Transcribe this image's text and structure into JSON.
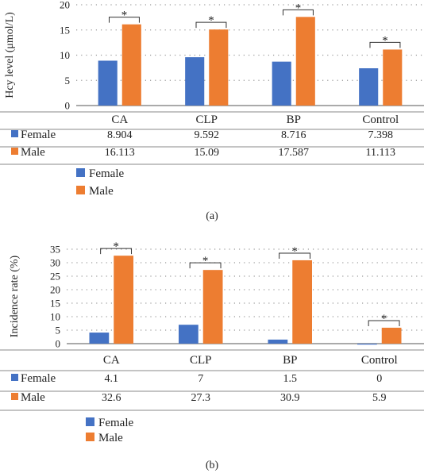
{
  "colors": {
    "female": "#4472c4",
    "male": "#ed7d31"
  },
  "chart_data": [
    {
      "type": "bar",
      "ylabel": "Hcy level (μmol/L)",
      "ylim": [
        0,
        20
      ],
      "yticks": [
        "0",
        "5",
        "10",
        "15",
        "20"
      ],
      "categories": [
        "CA",
        "CLP",
        "BP",
        "Control"
      ],
      "series": [
        {
          "name": "Female",
          "values": [
            8.904,
            9.592,
            8.716,
            7.398
          ],
          "labels": [
            "8.904",
            "9.592",
            "8.716",
            "7.398"
          ],
          "color": "#4472c4"
        },
        {
          "name": "Male",
          "values": [
            16.113,
            15.09,
            17.587,
            11.113
          ],
          "labels": [
            "16.113",
            "15.09",
            "17.587",
            "11.113"
          ],
          "color": "#ed7d31"
        }
      ],
      "significance": "*",
      "grid": true,
      "legend": [
        "Female",
        "Male"
      ],
      "caption": "(a)"
    },
    {
      "type": "bar",
      "ylabel": "Incidence rate (%)",
      "ylim": [
        0,
        35
      ],
      "yticks": [
        "0",
        "5",
        "10",
        "15",
        "20",
        "25",
        "30",
        "35"
      ],
      "categories": [
        "CA",
        "CLP",
        "BP",
        "Control"
      ],
      "series": [
        {
          "name": "Female",
          "values": [
            4.1,
            7,
            1.5,
            0
          ],
          "labels": [
            "4.1",
            "7",
            "1.5",
            "0"
          ],
          "color": "#4472c4"
        },
        {
          "name": "Male",
          "values": [
            32.6,
            27.3,
            30.9,
            5.9
          ],
          "labels": [
            "32.6",
            "27.3",
            "30.9",
            "5.9"
          ],
          "color": "#ed7d31"
        }
      ],
      "significance": "*",
      "grid": true,
      "legend": [
        "Female",
        "Male"
      ],
      "caption": "(b)"
    }
  ]
}
